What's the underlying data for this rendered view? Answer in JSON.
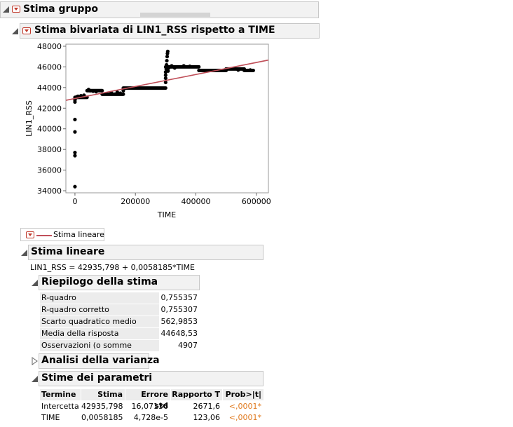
{
  "group_header": {
    "title": "Stima gruppo"
  },
  "bivariate_header": {
    "title": "Stima bivariata di LIN1_RSS rispetto a TIME"
  },
  "chart_data": {
    "type": "scatter",
    "xlabel": "TIME",
    "ylabel": "LIN1_RSS",
    "xlim": [
      -30000,
      640000
    ],
    "ylim": [
      33800,
      48200
    ],
    "x_ticks": [
      0,
      200000,
      400000,
      600000
    ],
    "x_tick_labels": [
      "0",
      "200000",
      "400000",
      "600000"
    ],
    "y_ticks": [
      34000,
      36000,
      38000,
      40000,
      42000,
      44000,
      46000,
      48000
    ],
    "y_tick_labels": [
      "34000",
      "36000",
      "38000",
      "40000",
      "42000",
      "44000",
      "46000",
      "48000"
    ],
    "grid": false,
    "fit_line": {
      "intercept": 42935.798,
      "slope": 0.0058185,
      "color": "#c0505a"
    },
    "point_color": "#000000",
    "segments": [
      {
        "x0": 0,
        "x1": 40000,
        "y": 43050
      },
      {
        "x0": 40000,
        "x1": 90000,
        "y": 43700
      },
      {
        "x0": 90000,
        "x1": 160000,
        "y": 43350
      },
      {
        "x0": 160000,
        "x1": 300000,
        "y": 43950
      },
      {
        "x0": 300000,
        "x1": 410000,
        "y": 46000
      },
      {
        "x0": 410000,
        "x1": 500000,
        "y": 45650
      },
      {
        "x0": 500000,
        "x1": 560000,
        "y": 45800
      },
      {
        "x0": 560000,
        "x1": 590000,
        "y": 45650
      }
    ],
    "points": [
      [
        0,
        34400
      ],
      [
        0,
        37400
      ],
      [
        0,
        37700
      ],
      [
        0,
        39700
      ],
      [
        0,
        40900
      ],
      [
        0,
        42600
      ],
      [
        0,
        42800
      ],
      [
        3000,
        43000
      ],
      [
        6000,
        43100
      ],
      [
        10000,
        43150
      ],
      [
        20000,
        43200
      ],
      [
        30000,
        43250
      ],
      [
        45000,
        43800
      ],
      [
        50000,
        43700
      ],
      [
        60000,
        43650
      ],
      [
        70000,
        43600
      ],
      [
        120000,
        43500
      ],
      [
        140000,
        43550
      ],
      [
        150000,
        43450
      ],
      [
        160000,
        43700
      ],
      [
        300000,
        44500
      ],
      [
        300000,
        44900
      ],
      [
        300000,
        45200
      ],
      [
        300000,
        45500
      ],
      [
        302000,
        45800
      ],
      [
        303000,
        46200
      ],
      [
        304000,
        46600
      ],
      [
        305000,
        47000
      ],
      [
        306000,
        47300
      ],
      [
        307000,
        47500
      ],
      [
        308000,
        45600
      ],
      [
        310000,
        45900
      ],
      [
        320000,
        46100
      ],
      [
        330000,
        45900
      ],
      [
        360000,
        46100
      ],
      [
        380000,
        46050
      ],
      [
        540000,
        45700
      ],
      [
        580000,
        45700
      ]
    ]
  },
  "legend": {
    "label": "Stima lineare"
  },
  "linear_fit": {
    "title": "Stima lineare",
    "equation": "LIN1_RSS = 42935,798 + 0,0058185*TIME"
  },
  "summary": {
    "title": "Riepilogo della stima",
    "rows": [
      {
        "label": "R-quadro",
        "value": "0,755357"
      },
      {
        "label": "R-quadro corretto",
        "value": "0,755307"
      },
      {
        "label": "Scarto quadratico medio",
        "value": "562,9853"
      },
      {
        "label": "Media della risposta",
        "value": "44648,53"
      },
      {
        "label": "Osservazioni (o somme pesate)",
        "value": "4907"
      }
    ]
  },
  "anova": {
    "title": "Analisi della varianza"
  },
  "params": {
    "title": "Stime dei parametri",
    "headers": [
      "Termine",
      "Stima",
      "Errore std",
      "Rapporto T",
      "Prob>|t|"
    ],
    "rows": [
      {
        "term": "Intercetta",
        "estimate": "42935,798",
        "std_error": "16,07136",
        "t_ratio": "2671,6",
        "prob": "<,0001*"
      },
      {
        "term": "TIME",
        "estimate": "0,0058185",
        "std_error": "4,728e-5",
        "t_ratio": "123,06",
        "prob": "<,0001*"
      }
    ]
  }
}
